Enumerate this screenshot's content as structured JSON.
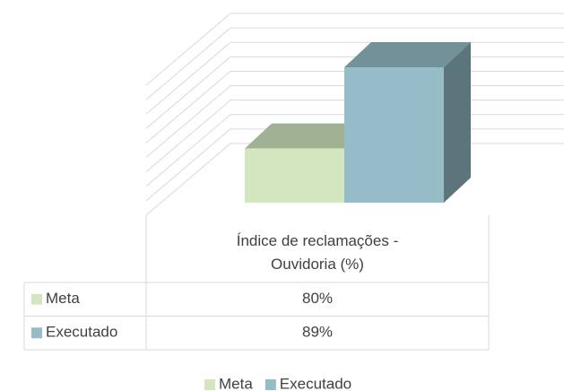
{
  "chart_data": {
    "type": "bar3d",
    "categories": [
      "Índice de reclamações - Ouvidoria (%)"
    ],
    "series": [
      {
        "name": "Meta",
        "color": "#d3e6c0",
        "values": [
          80
        ],
        "value_labels": [
          "80%"
        ]
      },
      {
        "name": "Executado",
        "color": "#95bcc7",
        "values": [
          89
        ],
        "value_labels": [
          "89%"
        ]
      }
    ],
    "ylim": [
      74,
      92
    ],
    "yticks": [
      74,
      76,
      78,
      80,
      82,
      84,
      86,
      88,
      90,
      92
    ],
    "grid": true
  }
}
